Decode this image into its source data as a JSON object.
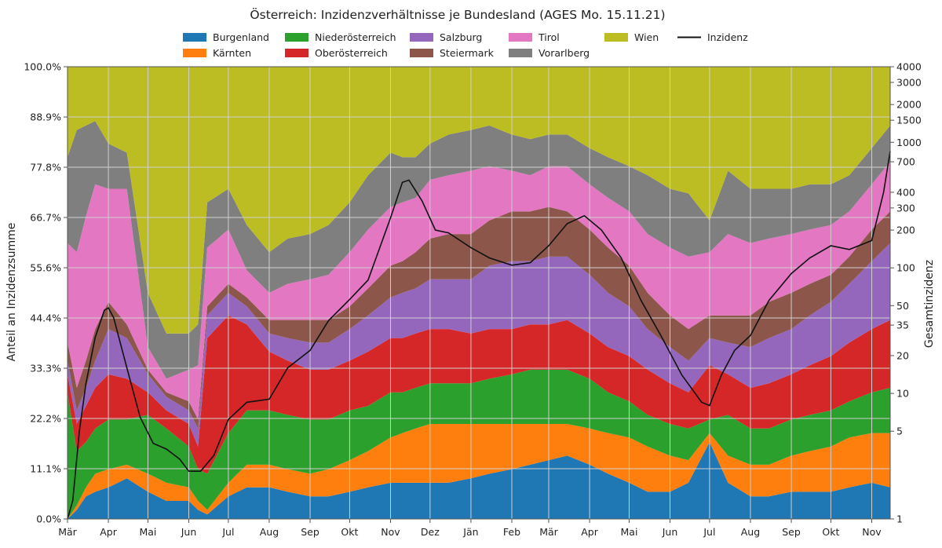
{
  "chart_data": {
    "type": "area",
    "stacked": true,
    "title": "Österreich: Inzidenzverhältnisse je Bundesland (AGES Mo. 15.11.21)",
    "ylabel": "Anteil an Inzidenzsumme",
    "y2label": "Gesamtinzidenz",
    "ylim": [
      0,
      100
    ],
    "y_ticks": [
      "0.0%",
      "11.1%",
      "22.2%",
      "33.3%",
      "44.4%",
      "55.6%",
      "66.7%",
      "77.8%",
      "88.9%",
      "100.0%"
    ],
    "y2_scale": "log",
    "y2lim": [
      1,
      4000
    ],
    "y2_ticks": [
      "1",
      "5",
      "10",
      "20",
      "35",
      "50",
      "100",
      "200",
      "300",
      "400",
      "700",
      "1000",
      "1500",
      "2000",
      "3000",
      "4000"
    ],
    "x_ticks": [
      "Mär",
      "Apr",
      "Mai",
      "Jun",
      "Jul",
      "Aug",
      "Sep",
      "Okt",
      "Nov",
      "Dez",
      "Jän",
      "Feb",
      "Mär",
      "Apr",
      "Mai",
      "Jun",
      "Jul",
      "Aug",
      "Sep",
      "Okt",
      "Nov"
    ],
    "legend_position": "top",
    "grid": true,
    "x": [
      "2020-03-01",
      "2020-03-08",
      "2020-03-15",
      "2020-03-22",
      "2020-04-01",
      "2020-04-15",
      "2020-05-01",
      "2020-05-15",
      "2020-06-01",
      "2020-06-08",
      "2020-06-15",
      "2020-07-01",
      "2020-07-15",
      "2020-08-01",
      "2020-08-15",
      "2020-09-01",
      "2020-09-15",
      "2020-10-01",
      "2020-10-15",
      "2020-11-01",
      "2020-11-10",
      "2020-11-20",
      "2020-12-01",
      "2020-12-15",
      "2021-01-01",
      "2021-01-15",
      "2021-02-01",
      "2021-02-15",
      "2021-03-01",
      "2021-03-15",
      "2021-04-01",
      "2021-04-15",
      "2021-05-01",
      "2021-05-15",
      "2021-06-01",
      "2021-06-15",
      "2021-07-01",
      "2021-07-15",
      "2021-08-01",
      "2021-08-15",
      "2021-09-01",
      "2021-09-15",
      "2021-10-01",
      "2021-10-15",
      "2021-11-01",
      "2021-11-15"
    ],
    "series": [
      {
        "name": "Burgenland",
        "color": "#1f77b4",
        "values": [
          0,
          2,
          5,
          6,
          7,
          9,
          6,
          4,
          4,
          2,
          1,
          5,
          7,
          7,
          6,
          5,
          5,
          6,
          7,
          8,
          8,
          8,
          8,
          8,
          9,
          10,
          11,
          12,
          13,
          14,
          12,
          10,
          8,
          6,
          6,
          8,
          17,
          8,
          5,
          5,
          6,
          6,
          6,
          7,
          8,
          7
        ]
      },
      {
        "name": "Kärnten",
        "color": "#ff7f0e",
        "values": [
          0,
          1,
          2,
          4,
          4,
          3,
          4,
          4,
          3,
          2,
          1,
          3,
          5,
          5,
          5,
          5,
          6,
          7,
          8,
          10,
          11,
          12,
          13,
          13,
          12,
          11,
          10,
          9,
          8,
          7,
          8,
          9,
          10,
          10,
          8,
          5,
          2,
          6,
          7,
          7,
          8,
          9,
          10,
          11,
          11,
          12
        ]
      },
      {
        "name": "Niederösterreich",
        "color": "#2ca02c",
        "values": [
          28,
          12,
          10,
          10,
          11,
          10,
          13,
          12,
          9,
          7,
          8,
          11,
          12,
          12,
          12,
          12,
          11,
          11,
          10,
          10,
          9,
          9,
          9,
          9,
          9,
          10,
          11,
          12,
          12,
          12,
          11,
          9,
          8,
          7,
          7,
          7,
          3,
          9,
          8,
          8,
          8,
          8,
          8,
          8,
          9,
          10
        ]
      },
      {
        "name": "Oberösterreich",
        "color": "#d62728",
        "values": [
          4,
          6,
          8,
          9,
          10,
          9,
          5,
          4,
          5,
          5,
          30,
          26,
          19,
          13,
          12,
          11,
          11,
          11,
          12,
          12,
          12,
          12,
          12,
          12,
          11,
          11,
          10,
          10,
          10,
          11,
          10,
          10,
          10,
          10,
          9,
          8,
          12,
          9,
          9,
          10,
          10,
          11,
          12,
          13,
          14,
          15
        ]
      },
      {
        "name": "Salzburg",
        "color": "#9467bd",
        "values": [
          3,
          3,
          4,
          6,
          10,
          9,
          4,
          3,
          3,
          4,
          5,
          5,
          4,
          4,
          5,
          6,
          6,
          7,
          8,
          9,
          10,
          10,
          11,
          11,
          12,
          14,
          15,
          14,
          15,
          14,
          13,
          12,
          11,
          9,
          8,
          7,
          6,
          7,
          9,
          10,
          10,
          11,
          12,
          13,
          15,
          17
        ]
      },
      {
        "name": "Steiermark",
        "color": "#8c564b",
        "values": [
          4,
          5,
          6,
          7,
          6,
          3,
          1,
          1,
          2,
          2,
          2,
          2,
          2,
          3,
          4,
          5,
          5,
          5,
          6,
          7,
          7,
          8,
          9,
          10,
          10,
          10,
          11,
          11,
          11,
          10,
          10,
          10,
          9,
          8,
          7,
          7,
          5,
          6,
          7,
          8,
          8,
          7,
          6,
          6,
          7,
          7
        ]
      },
      {
        "name": "Tirol",
        "color": "#e377c2",
        "values": [
          22,
          30,
          32,
          32,
          25,
          30,
          5,
          3,
          7,
          12,
          13,
          12,
          6,
          6,
          8,
          9,
          10,
          12,
          13,
          13,
          13,
          12,
          13,
          13,
          14,
          12,
          9,
          8,
          9,
          10,
          10,
          11,
          12,
          13,
          15,
          16,
          14,
          18,
          16,
          14,
          13,
          12,
          11,
          10,
          10,
          11
        ]
      },
      {
        "name": "Vorarlberg",
        "color": "#7f7f7f",
        "values": [
          19,
          27,
          20,
          14,
          10,
          8,
          12,
          10,
          8,
          9,
          10,
          9,
          10,
          9,
          10,
          10,
          11,
          11,
          12,
          12,
          10,
          9,
          8,
          9,
          9,
          9,
          8,
          8,
          7,
          7,
          8,
          9,
          10,
          13,
          13,
          14,
          7,
          14,
          12,
          11,
          10,
          10,
          9,
          8,
          8,
          8
        ]
      },
      {
        "name": "Wien",
        "color": "#bcbd22",
        "values": [
          20,
          14,
          13,
          12,
          17,
          19,
          50,
          59,
          59,
          57,
          30,
          27,
          35,
          41,
          38,
          37,
          35,
          30,
          24,
          19,
          20,
          20,
          17,
          15,
          14,
          13,
          15,
          16,
          15,
          15,
          18,
          20,
          22,
          24,
          27,
          28,
          34,
          23,
          27,
          27,
          27,
          26,
          26,
          24,
          18,
          13
        ]
      }
    ],
    "line": {
      "name": "Inzidenz",
      "color": "#111111",
      "x": [
        "2020-03-01",
        "2020-03-05",
        "2020-03-10",
        "2020-03-15",
        "2020-03-22",
        "2020-03-29",
        "2020-04-01",
        "2020-04-05",
        "2020-04-15",
        "2020-04-25",
        "2020-05-05",
        "2020-05-15",
        "2020-05-25",
        "2020-06-01",
        "2020-06-10",
        "2020-06-20",
        "2020-07-01",
        "2020-07-15",
        "2020-08-01",
        "2020-08-15",
        "2020-09-01",
        "2020-09-15",
        "2020-10-01",
        "2020-10-15",
        "2020-11-01",
        "2020-11-10",
        "2020-11-15",
        "2020-11-25",
        "2020-12-05",
        "2020-12-15",
        "2021-01-01",
        "2021-01-15",
        "2021-02-01",
        "2021-02-15",
        "2021-03-01",
        "2021-03-15",
        "2021-03-28",
        "2021-04-10",
        "2021-04-25",
        "2021-05-10",
        "2021-05-25",
        "2021-06-10",
        "2021-06-25",
        "2021-07-01",
        "2021-07-10",
        "2021-07-20",
        "2021-08-01",
        "2021-08-15",
        "2021-09-01",
        "2021-09-15",
        "2021-10-01",
        "2021-10-15",
        "2021-11-01",
        "2021-11-10",
        "2021-11-15"
      ],
      "values": [
        1,
        1.4,
        5,
        12,
        28,
        46,
        48,
        40,
        16,
        6.5,
        4,
        3.6,
        3,
        2.4,
        2.4,
        3.2,
        6.2,
        8.5,
        9,
        16,
        22,
        38,
        56,
        80,
        250,
        480,
        500,
        340,
        200,
        190,
        145,
        120,
        105,
        110,
        150,
        225,
        260,
        200,
        120,
        55,
        29,
        14,
        8.5,
        8,
        14,
        22,
        29,
        55,
        90,
        120,
        150,
        140,
        165,
        400,
        850
      ]
    }
  }
}
